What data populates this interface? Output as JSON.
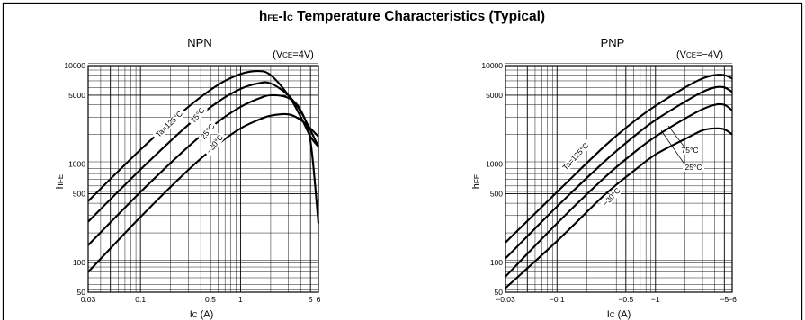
{
  "figure": {
    "title_prefix": "h",
    "title_prefix_sub": "FE",
    "title_mid": "-I",
    "title_mid_sub": "C",
    "title_rest": " Temperature Characteristics (Typical)"
  },
  "chart_data": [
    {
      "type": "line",
      "title": "NPN",
      "condition": "(V",
      "condition_sub": "CE",
      "condition_rest": "=4V)",
      "ylabel": "h",
      "ylabel_sub": "FE",
      "xlabel": "I",
      "xlabel_sub": "C",
      "xlabel_rest": " (A)",
      "x_scale": "log",
      "y_scale": "log",
      "xlim": [
        0.03,
        6
      ],
      "ylim": [
        50,
        10000
      ],
      "xticks": [
        {
          "v": 0.03,
          "label": "0.03"
        },
        {
          "v": 0.1,
          "label": "0.1"
        },
        {
          "v": 0.5,
          "label": "0.5"
        },
        {
          "v": 1,
          "label": "1"
        },
        {
          "v": 5,
          "label": "5"
        },
        {
          "v": 6,
          "label": "6"
        }
      ],
      "yticks": [
        {
          "v": 50,
          "label": "50"
        },
        {
          "v": 100,
          "label": "100"
        },
        {
          "v": 500,
          "label": "500"
        },
        {
          "v": 1000,
          "label": "1000"
        },
        {
          "v": 5000,
          "label": "5000"
        },
        {
          "v": 10000,
          "label": "10000"
        }
      ],
      "grid": true,
      "series": [
        {
          "name": "Ta=125°C",
          "x": [
            0.03,
            0.1,
            0.3,
            0.6,
            1.0,
            1.5,
            2.0,
            3.0,
            4.0,
            5.0,
            6.0
          ],
          "y": [
            420,
            1400,
            3800,
            6400,
            8200,
            8800,
            8000,
            5000,
            3000,
            1900,
            1500
          ]
        },
        {
          "name": "75°C",
          "x": [
            0.03,
            0.1,
            0.3,
            0.6,
            1.0,
            1.5,
            2.0,
            3.0,
            4.0,
            5.0,
            6.0
          ],
          "y": [
            260,
            880,
            2500,
            4300,
            5800,
            6600,
            6600,
            5000,
            3400,
            2200,
            1500
          ]
        },
        {
          "name": "25°C",
          "x": [
            0.03,
            0.1,
            0.3,
            0.6,
            1.0,
            1.5,
            2.0,
            3.0,
            4.0,
            5.0,
            6.0
          ],
          "y": [
            150,
            520,
            1500,
            2700,
            3800,
            4600,
            5000,
            4700,
            3500,
            1700,
            250
          ]
        },
        {
          "name": "−30°C",
          "x": [
            0.03,
            0.1,
            0.3,
            0.6,
            1.0,
            1.5,
            2.0,
            3.0,
            4.0,
            5.0,
            6.0
          ],
          "y": [
            80,
            290,
            870,
            1600,
            2300,
            2800,
            3100,
            3200,
            2800,
            2300,
            1900
          ]
        }
      ]
    },
    {
      "type": "line",
      "title": "PNP",
      "condition": "(V",
      "condition_sub": "CE",
      "condition_rest": "=−4V)",
      "ylabel": "h",
      "ylabel_sub": "FE",
      "xlabel": "I",
      "xlabel_sub": "C",
      "xlabel_rest": " (A)",
      "x_scale": "log",
      "y_scale": "log",
      "xlim": [
        -0.03,
        -6
      ],
      "ylim": [
        50,
        10000
      ],
      "xticks": [
        {
          "v": -0.03,
          "label": "−0.03"
        },
        {
          "v": -0.1,
          "label": "−0.1"
        },
        {
          "v": -0.5,
          "label": "−0.5"
        },
        {
          "v": -1,
          "label": "−1"
        },
        {
          "v": -5,
          "label": "−5"
        },
        {
          "v": -6,
          "label": "−6"
        }
      ],
      "yticks": [
        {
          "v": 50,
          "label": "50"
        },
        {
          "v": 100,
          "label": "100"
        },
        {
          "v": 500,
          "label": "500"
        },
        {
          "v": 1000,
          "label": "1000"
        },
        {
          "v": 5000,
          "label": "5000"
        },
        {
          "v": 10000,
          "label": "10000"
        }
      ],
      "grid": true,
      "series": [
        {
          "name": "Ta=125°C",
          "x": [
            -0.03,
            -0.1,
            -0.3,
            -0.6,
            -1.0,
            -2.0,
            -3.0,
            -4.0,
            -5.0,
            -6.0
          ],
          "y": [
            160,
            520,
            1500,
            2700,
            3900,
            6000,
            7400,
            8000,
            8000,
            7400
          ]
        },
        {
          "name": "75°C",
          "x": [
            -0.03,
            -0.1,
            -0.3,
            -0.6,
            -1.0,
            -2.0,
            -3.0,
            -4.0,
            -5.0,
            -6.0
          ],
          "y": [
            110,
            370,
            1050,
            1900,
            2800,
            4300,
            5400,
            6000,
            6000,
            5400
          ]
        },
        {
          "name": "25°C",
          "x": [
            -0.03,
            -0.1,
            -0.3,
            -0.6,
            -1.0,
            -2.0,
            -3.0,
            -4.0,
            -5.0,
            -6.0
          ],
          "y": [
            72,
            250,
            720,
            1300,
            1900,
            2900,
            3600,
            4000,
            4000,
            3500
          ]
        },
        {
          "name": "−30°C",
          "x": [
            -0.03,
            -0.1,
            -0.3,
            -0.6,
            -1.0,
            -2.0,
            -3.0,
            -4.0,
            -5.0,
            -6.0
          ],
          "y": [
            55,
            165,
            480,
            850,
            1250,
            1800,
            2200,
            2300,
            2250,
            2000
          ]
        }
      ],
      "annotations": [
        "75°C",
        "25°C"
      ]
    }
  ]
}
